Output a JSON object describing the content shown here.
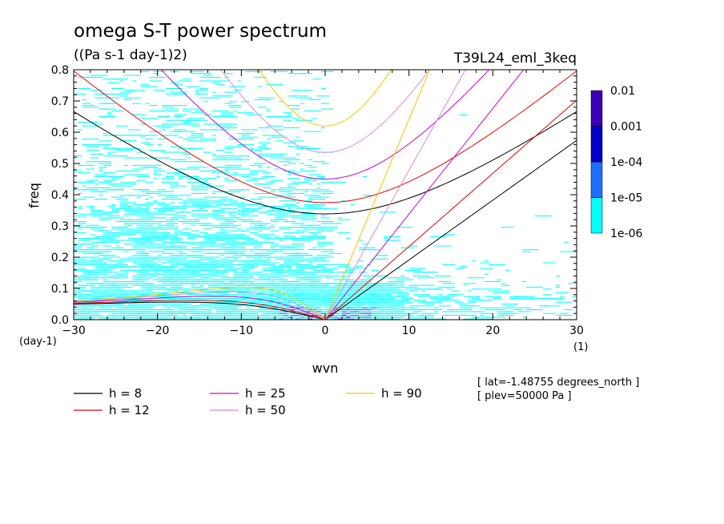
{
  "chart_data": {
    "type": "heatmap",
    "title": "omega S-T power spectrum",
    "subtitle": "((Pa s-1 day-1)2)",
    "run_label": "T39L24_eml_3keq",
    "xlabel": "wvn",
    "ylabel": "freq",
    "x_unit": "(1)",
    "y_unit": "(day-1)",
    "xlim": [
      -30,
      30
    ],
    "ylim": [
      0,
      0.8
    ],
    "x_ticks": [
      "-30",
      "-20",
      "-10",
      "0",
      "10",
      "20",
      "30"
    ],
    "y_ticks": [
      "0.0",
      "0.1",
      "0.2",
      "0.3",
      "0.4",
      "0.5",
      "0.6",
      "0.7",
      "0.8"
    ],
    "colorbar": {
      "scale": "log",
      "levels": [
        "1e-06",
        "1e-05",
        "1e-04",
        "0.001",
        "0.01"
      ],
      "colors": [
        "#00ffff",
        "#1e6fff",
        "#0000c8",
        "#3c00b4"
      ]
    },
    "dispersion_curves": [
      {
        "label": "h =  8",
        "h": 8,
        "color": "#000000"
      },
      {
        "label": "h = 12",
        "h": 12,
        "color": "#e60000"
      },
      {
        "label": "h = 25",
        "h": 25,
        "color": "#d400c8"
      },
      {
        "label": "h = 50",
        "h": 50,
        "color": "#dc8cdc"
      },
      {
        "label": "h = 90",
        "h": 90,
        "color": "#f0c800"
      }
    ],
    "annotations": [
      "[ lat=-1.48755 degrees_north ]",
      "[ plev=50000 Pa ]"
    ]
  }
}
